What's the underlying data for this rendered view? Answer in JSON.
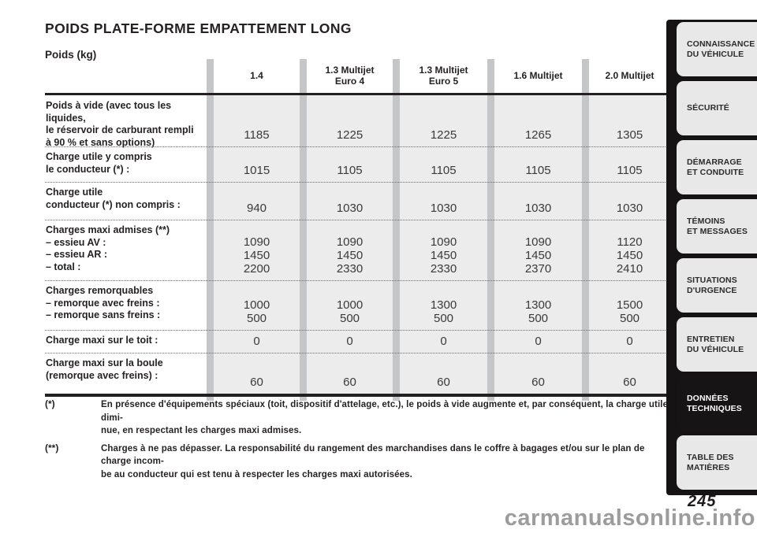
{
  "page": {
    "title": "POIDS PLATE-FORME EMPATTEMENT LONG",
    "unit_label": "Poids (kg)",
    "page_number": "245",
    "watermark": "carmanualsonline.info"
  },
  "table": {
    "columns": [
      {
        "id": "1-4",
        "label": "1.4"
      },
      {
        "id": "1-3-multijet-euro-4",
        "label": "1.3 Multijet\nEuro 4"
      },
      {
        "id": "1-3-multijet-euro-5",
        "label": "1.3 Multijet\nEuro 5"
      },
      {
        "id": "1-6-multijet",
        "label": "1.6 Multijet"
      },
      {
        "id": "2-0-multijet",
        "label": "2.0 Multijet"
      }
    ],
    "rows": [
      {
        "label": "Poids à vide (avec tous les liquides,\nle réservoir de carburant rempli\nà 90 % et sans options)",
        "values": [
          "1185",
          "1225",
          "1225",
          "1265",
          "1305"
        ]
      },
      {
        "label": "Charge utile y compris\nle conducteur (*) :",
        "values": [
          "1015",
          "1105",
          "1105",
          "1105",
          "1105"
        ]
      },
      {
        "label": "Charge utile\nconducteur (*) non compris :",
        "values": [
          "940",
          "1030",
          "1030",
          "1030",
          "1030"
        ]
      },
      {
        "label": "Charges maxi admises (**)\n– essieu AV :\n– essieu AR :\n– total :",
        "values": [
          "1090\n1450\n2200",
          "1090\n1450\n2330",
          "1090\n1450\n2330",
          "1090\n1450\n2370",
          "1120\n1450\n2410"
        ]
      },
      {
        "label": "Charges remorquables\n– remorque avec freins :\n– remorque sans freins :",
        "values": [
          "1000\n500",
          "1000\n500",
          "1300\n500",
          "1300\n500",
          "1500\n500"
        ]
      },
      {
        "label": "Charge maxi sur le toit :",
        "values": [
          "0",
          "0",
          "0",
          "0",
          "0"
        ]
      },
      {
        "label": "Charge maxi sur la boule\n(remorque avec freins) :",
        "values": [
          "60",
          "60",
          "60",
          "60",
          "60"
        ]
      }
    ]
  },
  "footnotes": [
    {
      "marker": "(*)",
      "text": "En présence d'équipements spéciaux (toit, dispositif d'attelage, etc.), le poids à vide augmente et, par conséquent, la charge utile dimi-\nnue, en respectant les charges maxi admises."
    },
    {
      "marker": "(**)",
      "text": "Charges à ne pas dépasser. La responsabilité du rangement des marchandises dans le coffre à bagages et/ou sur le plan de charge incom-\nbe au conducteur qui est tenu à respecter les charges maxi autorisées."
    }
  ],
  "sidebar": {
    "active_index": 6,
    "tabs": [
      {
        "id": "connaissance-du-vehicule",
        "label": "CONNAISSANCE\nDU VÉHICULE"
      },
      {
        "id": "securite",
        "label": "SÉCURITÉ"
      },
      {
        "id": "demarrage-et-conduite",
        "label": "DÉMARRAGE\nET CONDUITE"
      },
      {
        "id": "temoins-et-messages",
        "label": "TÉMOINS\nET MESSAGES"
      },
      {
        "id": "situations-d-urgence",
        "label": "SITUATIONS\nD'URGENCE"
      },
      {
        "id": "entretien-du-vehicule",
        "label": "ENTRETIEN\nDU VÉHICULE"
      },
      {
        "id": "donnees-techniques",
        "label": "DONNÉES\nTECHNIQUES"
      },
      {
        "id": "table-des-matieres",
        "label": "TABLE DES\nMATIÈRES"
      }
    ]
  }
}
